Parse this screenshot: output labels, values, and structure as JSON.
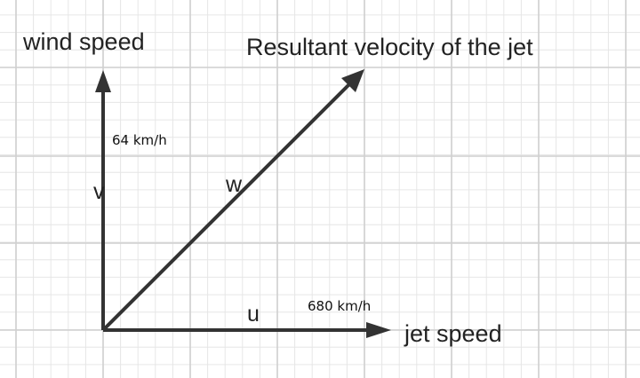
{
  "labels": {
    "wind_axis": "wind speed",
    "jet_axis": "jet speed",
    "resultant": "Resultant velocity of the jet",
    "wind_value": "64 km/h",
    "jet_value": "680 km/h",
    "v": "v",
    "w": "w",
    "u": "u"
  },
  "colors": {
    "arrow": "#333333",
    "grid_major": "#cfcfcf",
    "grid_minor": "#e6e6e6",
    "background": "#ffffff"
  }
}
